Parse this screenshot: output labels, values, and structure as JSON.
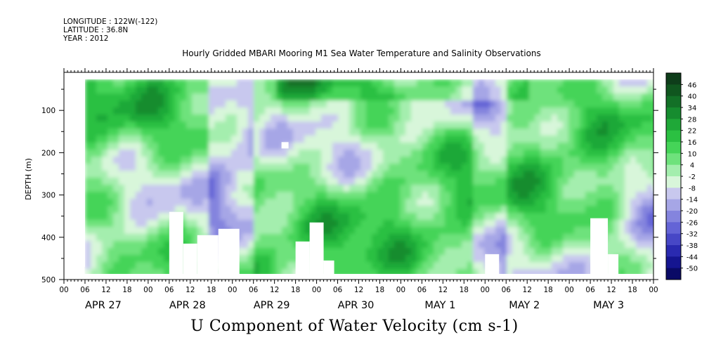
{
  "header": {
    "longitude": "LONGITUDE : 122W(-122)",
    "latitude": "LATITUDE : 36.8N",
    "year": "YEAR : 2012"
  },
  "chart_data": {
    "type": "heatmap",
    "title": "Hourly Gridded MBARI Mooring M1 Sea Water Temperature and Salinity Observations",
    "caption": "U Component of Water Velocity (cm s-1)",
    "xlabel": "",
    "ylabel": "DEPTH (m)",
    "ylim": [
      500,
      10
    ],
    "y_ticks": [
      100,
      200,
      300,
      400,
      500
    ],
    "x_hour_labels": [
      "00",
      "06",
      "12",
      "18",
      "00",
      "06",
      "12",
      "18",
      "00",
      "06",
      "12",
      "18",
      "00",
      "06",
      "12",
      "18",
      "00",
      "06",
      "12",
      "18",
      "00",
      "06",
      "12",
      "18",
      "00",
      "06",
      "12",
      "18",
      "00"
    ],
    "x_day_labels": [
      "APR 27",
      "APR 28",
      "APR 29",
      "APR 30",
      "MAY  1",
      "MAY  2",
      "MAY  3"
    ],
    "colorbar_levels": [
      46,
      40,
      34,
      28,
      22,
      16,
      10,
      4,
      -2,
      -8,
      -14,
      -20,
      -26,
      -32,
      -38,
      -44,
      -50
    ],
    "colorbar_colors": [
      "#0e3d1a",
      "#10561f",
      "#137027",
      "#168c2f",
      "#1fa838",
      "#2bc042",
      "#45d458",
      "#6ee27c",
      "#a4eeae",
      "#d8f6da",
      "#c8c8ee",
      "#a6a6e6",
      "#8484de",
      "#6464d6",
      "#4747c6",
      "#2a2ab0",
      "#151590",
      "#0a0a66"
    ]
  }
}
